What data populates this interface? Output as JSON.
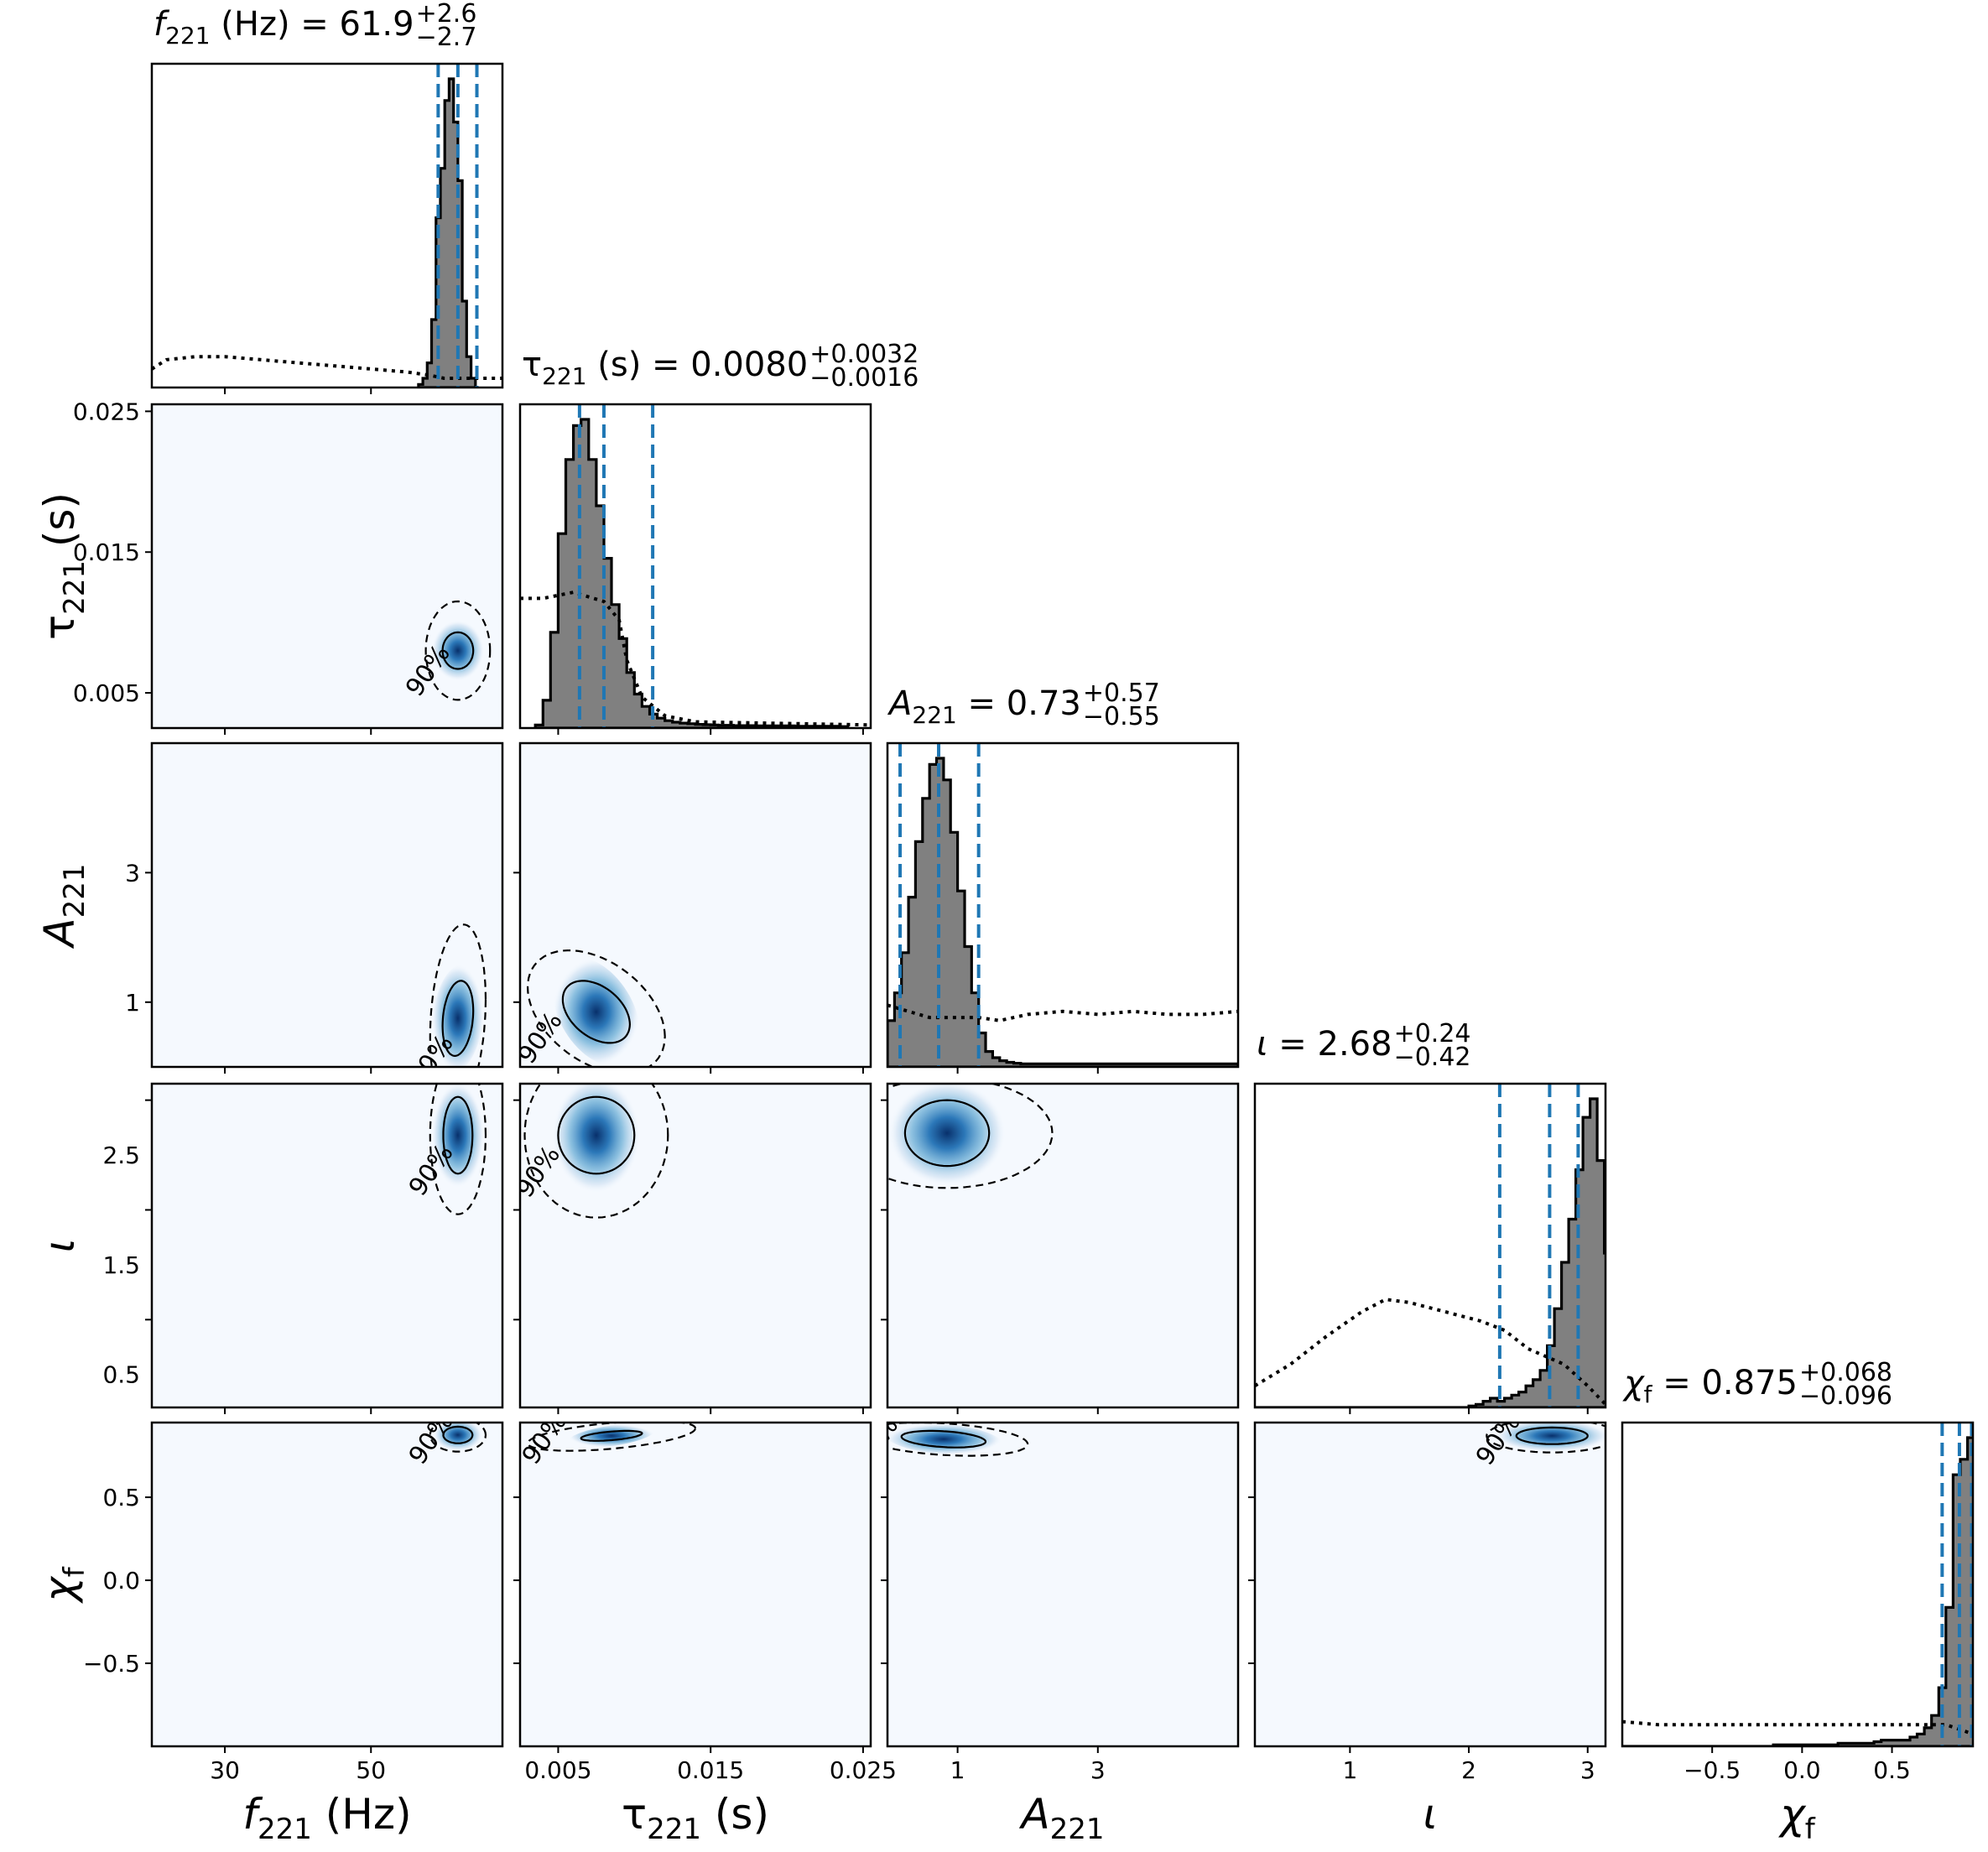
{
  "chart_data": {
    "type": "corner",
    "parameters": [
      {
        "id": "f221",
        "symbol": "f",
        "sub": "221",
        "unit": " (Hz)",
        "italic": true,
        "range": [
          20,
          68
        ],
        "ticks": [
          30,
          50
        ],
        "title": {
          "value": "61.9",
          "plus": "+2.6",
          "minus": "−2.7"
        },
        "median": 61.9,
        "ci": [
          59.2,
          64.5
        ]
      },
      {
        "id": "tau221",
        "symbol": "τ",
        "sub": "221",
        "unit": " (s)",
        "italic": false,
        "range": [
          0.0025,
          0.0255
        ],
        "ticks": [
          0.005,
          0.015,
          0.025
        ],
        "title": {
          "value": "0.0080",
          "plus": "+0.0032",
          "minus": "−0.0016"
        },
        "median": 0.008,
        "ci": [
          0.0064,
          0.0112
        ]
      },
      {
        "id": "A221",
        "symbol": "A",
        "sub": "221",
        "unit": "",
        "italic": true,
        "range": [
          0,
          5
        ],
        "ticks": [
          1,
          3
        ],
        "title": {
          "value": "0.73",
          "plus": "+0.57",
          "minus": "−0.55"
        },
        "median": 0.73,
        "ci": [
          0.18,
          1.3
        ]
      },
      {
        "id": "iota",
        "symbol": "ι",
        "sub": "",
        "unit": "",
        "italic": true,
        "range": [
          0.2,
          3.15
        ],
        "ticks": [
          1,
          2,
          3
        ],
        "title": {
          "value": "2.68",
          "plus": "+0.24",
          "minus": "−0.42"
        },
        "median": 2.68,
        "ci": [
          2.26,
          2.92
        ]
      },
      {
        "id": "chif",
        "symbol": "χ",
        "sub": "f",
        "unit": "",
        "italic": true,
        "range": [
          -1,
          0.95
        ],
        "ticks": [
          -0.5,
          0.0,
          0.5
        ],
        "title": {
          "value": "0.875",
          "plus": "+0.068",
          "minus": "−0.096"
        },
        "median": 0.875,
        "ci": [
          0.779,
          0.943
        ]
      }
    ],
    "diag_ticks": [
      [],
      [
        0.005,
        0.015,
        0.025
      ],
      [
        1,
        3
      ],
      [
        0.5,
        1.5,
        2.5
      ],
      [
        -0.5,
        0.0,
        0.5
      ]
    ],
    "diag_tick_labels": [
      [],
      [
        "0.005",
        "0.015",
        "0.025"
      ],
      [
        "1",
        "3"
      ],
      [
        "0.5",
        "1.5",
        "2.5"
      ],
      [
        "−0.5",
        "0.0",
        "0.5"
      ]
    ],
    "x_tick_labels": [
      [
        "30",
        "50"
      ],
      [
        "0.005",
        "0.015",
        "0.025"
      ],
      [
        "1",
        "3"
      ],
      [
        "1",
        "2",
        "3"
      ],
      [
        "−0.5",
        "0.0",
        "0.5"
      ]
    ],
    "contour_level_label": "90%",
    "histograms": [
      {
        "type": "posterior",
        "param": "f221",
        "bin_edges_start": 56.5,
        "bin_width": 0.6,
        "counts": [
          0.01,
          0.03,
          0.08,
          0.22,
          0.55,
          0.71,
          0.93,
          1.0,
          0.86,
          0.67,
          0.28,
          0.1,
          0.03
        ]
      },
      {
        "type": "posterior",
        "param": "tau221",
        "bin_edges_start": 0.0035,
        "bin_width": 0.0005,
        "counts": [
          0.01,
          0.09,
          0.31,
          0.63,
          0.87,
          0.98,
          1.0,
          0.87,
          0.72,
          0.55,
          0.4,
          0.29,
          0.18,
          0.11,
          0.07,
          0.045,
          0.032,
          0.024,
          0.019,
          0.016,
          0.014,
          0.012,
          0.011,
          0.01,
          0.009,
          0.009,
          0.008,
          0.008,
          0.008,
          0.007,
          0.007,
          0.007,
          0.007,
          0.007,
          0.006,
          0.006,
          0.006,
          0.006,
          0.006,
          0.006,
          0.005
        ]
      },
      {
        "type": "posterior",
        "param": "A221",
        "bin_edges_start": 0.0,
        "bin_width": 0.1,
        "counts": [
          0.15,
          0.24,
          0.37,
          0.55,
          0.73,
          0.87,
          0.98,
          1.0,
          0.93,
          0.76,
          0.57,
          0.39,
          0.24,
          0.11,
          0.05,
          0.03,
          0.02,
          0.015,
          0.012,
          0.01,
          0.01,
          0.01,
          0.01,
          0.01,
          0.01,
          0.01,
          0.01,
          0.01,
          0.01,
          0.01,
          0.01,
          0.01,
          0.01,
          0.01,
          0.01,
          0.01,
          0.01,
          0.01,
          0.01,
          0.01,
          0.01,
          0.01,
          0.01,
          0.01,
          0.01,
          0.01,
          0.01,
          0.01,
          0.01,
          0.01
        ]
      },
      {
        "type": "posterior",
        "param": "iota",
        "bin_edges_start": 0.2,
        "bin_width": 0.06,
        "counts": [
          0,
          0,
          0,
          0,
          0,
          0,
          0,
          0,
          0,
          0,
          0,
          0,
          0,
          0,
          0,
          0,
          0,
          0,
          0,
          0,
          0,
          0,
          0,
          0,
          0,
          0,
          0,
          0,
          0,
          0,
          0.005,
          0.01,
          0.02,
          0.03,
          0.02,
          0.03,
          0.04,
          0.05,
          0.07,
          0.09,
          0.12,
          0.2,
          0.32,
          0.47,
          0.61,
          0.77,
          0.94,
          1.0,
          0.8,
          0.5,
          0.22
        ]
      },
      {
        "type": "posterior",
        "param": "chif",
        "bin_edges_start": -1.0,
        "bin_width": 0.04,
        "counts": [
          0,
          0,
          0,
          0,
          0,
          0,
          0,
          0,
          0,
          0,
          0,
          0,
          0,
          0,
          0,
          0,
          0,
          0,
          0,
          0,
          0,
          0.005,
          0.005,
          0.005,
          0.005,
          0.005,
          0.005,
          0.005,
          0.005,
          0.005,
          0.01,
          0.01,
          0.01,
          0.01,
          0.01,
          0.015,
          0.02,
          0.02,
          0.02,
          0.02,
          0.03,
          0.04,
          0.06,
          0.1,
          0.19,
          0.45,
          0.88,
          0.93,
          1.0
        ]
      }
    ],
    "priors": [
      {
        "param": "f221",
        "style": "dotted",
        "x": [
          20,
          22,
          26,
          30,
          35,
          40,
          45,
          50,
          55,
          58,
          60,
          64,
          68
        ],
        "y": [
          0.06,
          0.09,
          0.1,
          0.1,
          0.09,
          0.08,
          0.07,
          0.06,
          0.05,
          0.04,
          0.03,
          0.03,
          0.03
        ]
      },
      {
        "param": "tau221",
        "style": "dotted",
        "x": [
          0.0025,
          0.004,
          0.006,
          0.008,
          0.009,
          0.0095,
          0.0105,
          0.012,
          0.014,
          0.0255
        ],
        "y": [
          0.42,
          0.42,
          0.44,
          0.41,
          0.35,
          0.22,
          0.1,
          0.04,
          0.02,
          0.01
        ]
      },
      {
        "param": "A221",
        "style": "dotted",
        "x": [
          0,
          0.3,
          0.6,
          1.0,
          1.3,
          1.6,
          2.0,
          2.5,
          3.0,
          3.5,
          4.0,
          4.5,
          5.0
        ],
        "y": [
          0.2,
          0.18,
          0.16,
          0.16,
          0.16,
          0.15,
          0.17,
          0.18,
          0.17,
          0.18,
          0.17,
          0.17,
          0.18
        ]
      },
      {
        "param": "iota",
        "style": "dotted",
        "x": [
          0.2,
          0.5,
          0.8,
          1.1,
          1.3,
          1.5,
          1.8,
          2.1,
          2.3,
          2.5,
          2.8,
          3.0,
          3.15
        ],
        "y": [
          0.07,
          0.14,
          0.23,
          0.31,
          0.35,
          0.34,
          0.31,
          0.28,
          0.25,
          0.19,
          0.14,
          0.07,
          0.01
        ]
      },
      {
        "param": "chif",
        "style": "dotted",
        "x": [
          -1.0,
          -0.8,
          -0.5,
          -0.2,
          0.0,
          0.3,
          0.5,
          0.7,
          0.8,
          0.85,
          0.95
        ],
        "y": [
          0.08,
          0.07,
          0.07,
          0.07,
          0.07,
          0.07,
          0.07,
          0.07,
          0.07,
          0.06,
          0.04
        ]
      }
    ],
    "blobs": [
      {
        "params": [
          "f221",
          "tau221"
        ],
        "center": [
          61.9,
          0.008
        ],
        "sigma": [
          1.5,
          0.0009
        ],
        "rho": 0.0,
        "contour90": [
          4.4,
          0.0035
        ],
        "contour50": [
          2.1,
          0.0013
        ]
      },
      {
        "params": [
          "f221",
          "A221"
        ],
        "center": [
          61.9,
          0.75
        ],
        "sigma": [
          1.5,
          0.35
        ],
        "rho": 0.2,
        "contour90": [
          3.8,
          1.45
        ],
        "contour50": [
          2.1,
          0.58
        ]
      },
      {
        "params": [
          "f221",
          "iota"
        ],
        "center": [
          61.9,
          2.68
        ],
        "sigma": [
          1.5,
          0.2
        ],
        "rho": 0.0,
        "contour90": [
          3.8,
          0.72
        ],
        "contour50": [
          2.0,
          0.35
        ]
      },
      {
        "params": [
          "f221",
          "chif"
        ],
        "center": [
          61.9,
          0.875
        ],
        "sigma": [
          1.4,
          0.04
        ],
        "rho": 0.0,
        "contour90": [
          3.8,
          0.1
        ],
        "contour50": [
          2.0,
          0.05
        ]
      },
      {
        "params": [
          "tau221",
          "A221"
        ],
        "center": [
          0.0075,
          0.85
        ],
        "sigma": [
          0.0012,
          0.35
        ],
        "rho": -0.4,
        "contour90": [
          0.0045,
          0.95
        ],
        "contour50": [
          0.0022,
          0.48
        ]
      },
      {
        "params": [
          "tau221",
          "iota"
        ],
        "center": [
          0.0075,
          2.68
        ],
        "sigma": [
          0.0012,
          0.22
        ],
        "rho": 0.0,
        "contour90": [
          0.0047,
          0.75
        ],
        "contour50": [
          0.0025,
          0.35
        ]
      },
      {
        "params": [
          "tau221",
          "chif"
        ],
        "center": [
          0.0085,
          0.87
        ],
        "sigma": [
          0.0012,
          0.03
        ],
        "rho": 0.5,
        "contour90": [
          0.0055,
          0.09
        ],
        "contour50": [
          0.002,
          0.03
        ]
      },
      {
        "params": [
          "A221",
          "iota"
        ],
        "center": [
          0.85,
          2.7
        ],
        "sigma": [
          0.35,
          0.2
        ],
        "rho": 0.0,
        "contour90": [
          1.5,
          0.5
        ],
        "contour50": [
          0.6,
          0.3
        ]
      },
      {
        "params": [
          "A221",
          "chif"
        ],
        "center": [
          0.8,
          0.85
        ],
        "sigma": [
          0.35,
          0.04
        ],
        "rho": -0.3,
        "contour90": [
          1.2,
          0.1
        ],
        "contour50": [
          0.6,
          0.05
        ]
      },
      {
        "params": [
          "iota",
          "chif"
        ],
        "center": [
          2.7,
          0.87
        ],
        "sigma": [
          0.2,
          0.04
        ],
        "rho": 0.0,
        "contour90": [
          0.55,
          0.1
        ],
        "contour50": [
          0.3,
          0.05
        ]
      }
    ]
  }
}
